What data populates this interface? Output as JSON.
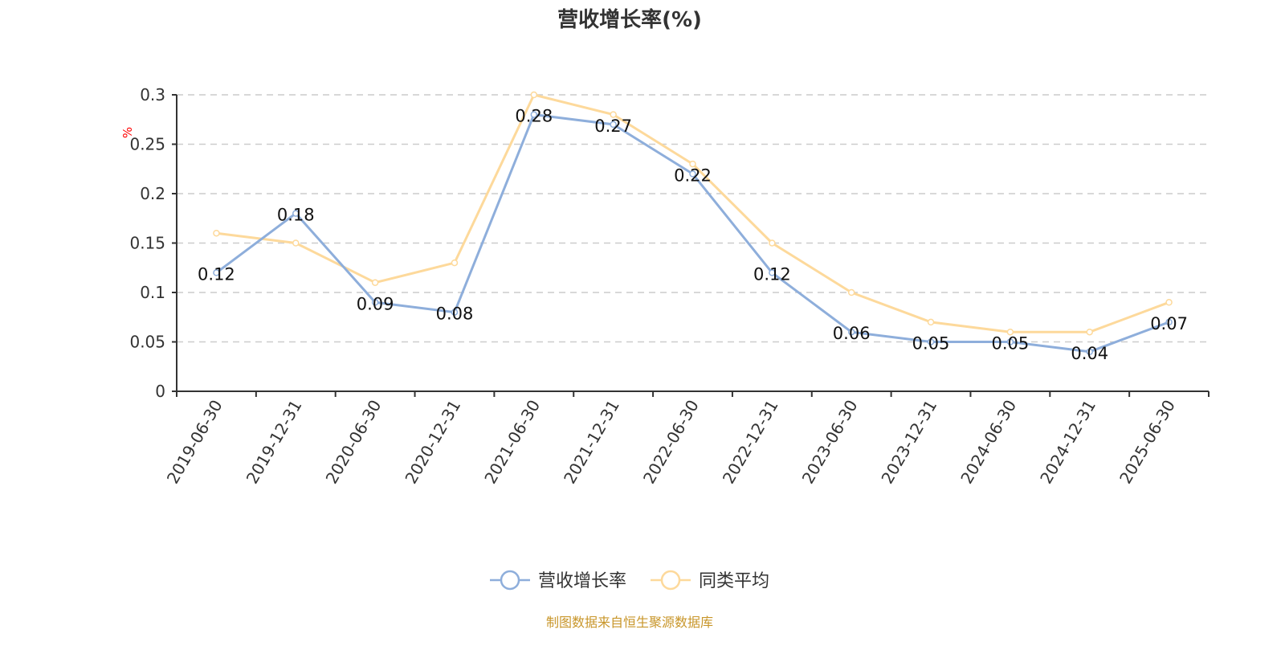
{
  "chart_data": {
    "type": "line",
    "title": "营收增长率(%)",
    "ylabel": "%",
    "ylim": [
      0,
      0.3
    ],
    "yticks": [
      "0",
      "0.05",
      "0.1",
      "0.15",
      "0.2",
      "0.25",
      "0.3"
    ],
    "grid": true,
    "legend_placement": "bottom",
    "categories": [
      "2019-06-30",
      "2019-12-31",
      "2020-06-30",
      "2020-12-31",
      "2021-06-30",
      "2021-12-31",
      "2022-06-30",
      "2022-12-31",
      "2023-06-30",
      "2023-12-31",
      "2024-06-30",
      "2024-12-31",
      "2025-06-30"
    ],
    "series": [
      {
        "name": "营收增长率",
        "color": "#8eaedb",
        "show_labels": true,
        "values": [
          0.12,
          0.18,
          0.09,
          0.08,
          0.28,
          0.27,
          0.22,
          0.12,
          0.06,
          0.05,
          0.05,
          0.04,
          0.07
        ]
      },
      {
        "name": "同类平均",
        "color": "#fdd99b",
        "show_labels": false,
        "values": [
          0.16,
          0.15,
          0.11,
          0.13,
          0.3,
          0.28,
          0.23,
          0.15,
          0.1,
          0.07,
          0.06,
          0.06,
          0.09
        ]
      }
    ]
  },
  "source": "制图数据来自恒生聚源数据库",
  "colors": {
    "source_text": "#c8962a",
    "unit_label": "#ff0000",
    "grid": "#cccccc",
    "axis": "#333333"
  }
}
